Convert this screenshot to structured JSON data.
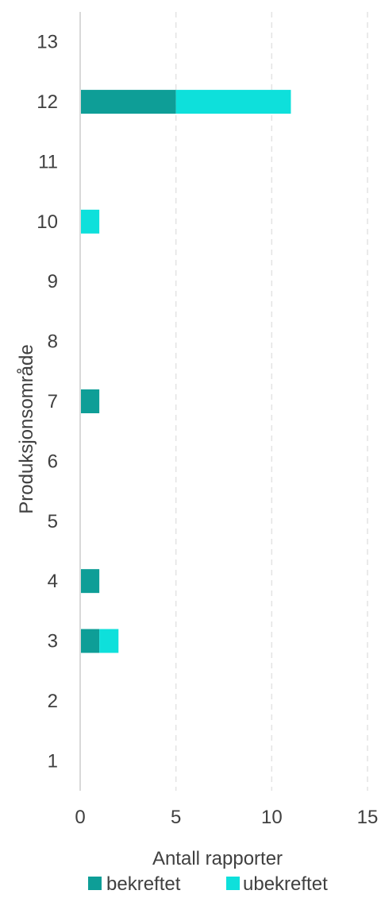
{
  "chart_data": {
    "type": "bar",
    "orientation": "horizontal",
    "stacked": true,
    "categories": [
      "1",
      "2",
      "3",
      "4",
      "5",
      "6",
      "7",
      "8",
      "9",
      "10",
      "11",
      "12",
      "13"
    ],
    "series": [
      {
        "name": "bekreftet",
        "color": "#0E9E97",
        "values": [
          0,
          0,
          1,
          1,
          0,
          0,
          1,
          0,
          0,
          0,
          0,
          5,
          0
        ]
      },
      {
        "name": "ubekreftet",
        "color": "#0EE0DB",
        "values": [
          0,
          0,
          1,
          0,
          0,
          0,
          0,
          0,
          0,
          1,
          0,
          6,
          0
        ]
      }
    ],
    "xlabel": "Antall rapporter",
    "ylabel": "Produksjonsområde",
    "xlim": [
      0,
      15
    ],
    "xticks": [
      "0",
      "5",
      "10",
      "15"
    ],
    "grid": "vertical-dashed",
    "legend": "bottom"
  }
}
